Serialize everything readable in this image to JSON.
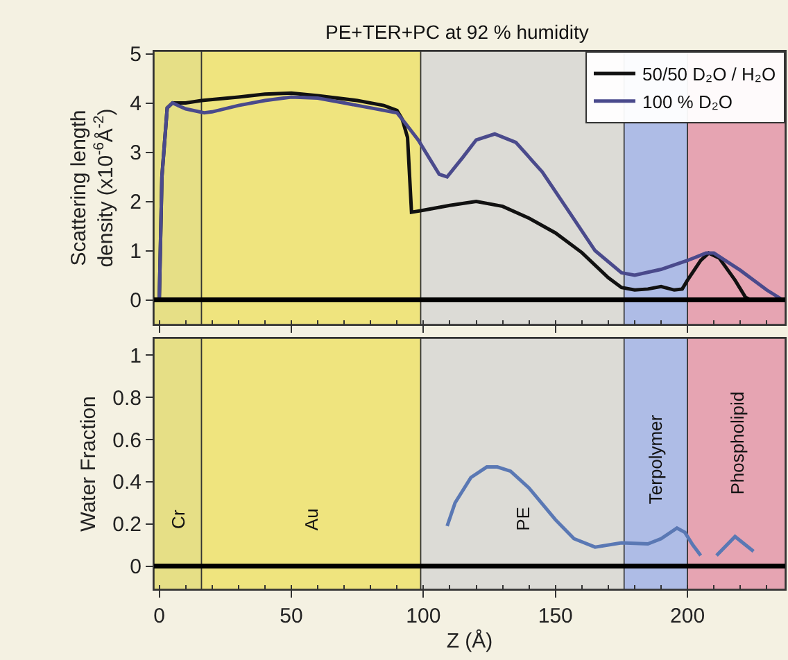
{
  "chart_data": [
    {
      "type": "line",
      "title": "PE+TER+PC at 92 % humidity",
      "ylabel": "Scattering length\ndensity (x10$^{-6}$Å$^{-2}$)",
      "xlim": [
        -2,
        237
      ],
      "xticks": [
        0,
        50,
        100,
        150,
        200
      ],
      "ylim": [
        -0.5,
        5.05
      ],
      "yticks": [
        0,
        1,
        2,
        3,
        4,
        5
      ],
      "tick_labels": "y",
      "grid": false,
      "legend": "top right",
      "marker": "none",
      "line_style": "solid",
      "series": [
        {
          "name": "50/50 D₂O / H₂O",
          "color": "#111111",
          "x": [
            0,
            1,
            3,
            5,
            10,
            16,
            30,
            40,
            50,
            60,
            75,
            85,
            90,
            92,
            94,
            95.5,
            100,
            110,
            120,
            130,
            140,
            150,
            160,
            170,
            175,
            180,
            185,
            190,
            195,
            198,
            200,
            205,
            208,
            212,
            218,
            222,
            224,
            236
          ],
          "values": [
            0,
            2.5,
            3.9,
            4.0,
            4.0,
            4.05,
            4.12,
            4.18,
            4.2,
            4.15,
            4.05,
            3.95,
            3.85,
            3.67,
            3.3,
            1.78,
            1.82,
            1.92,
            2.0,
            1.9,
            1.66,
            1.36,
            0.96,
            0.45,
            0.25,
            0.2,
            0.22,
            0.27,
            0.2,
            0.22,
            0.4,
            0.8,
            0.95,
            0.85,
            0.4,
            0.05,
            0,
            0
          ]
        },
        {
          "name": "100 % D₂O",
          "color": "#4a4a8c",
          "x": [
            0,
            1,
            3,
            5,
            10,
            17,
            20,
            30,
            40,
            50,
            60,
            70,
            80,
            90,
            93,
            98,
            102,
            106,
            109,
            115,
            120,
            127,
            135,
            145,
            155,
            165,
            175,
            180,
            190,
            200,
            207,
            210,
            220,
            230,
            236
          ],
          "values": [
            0,
            2.5,
            3.9,
            4.0,
            3.88,
            3.8,
            3.82,
            3.95,
            4.05,
            4.12,
            4.1,
            4.0,
            3.9,
            3.8,
            3.6,
            3.25,
            2.9,
            2.55,
            2.5,
            2.9,
            3.25,
            3.37,
            3.2,
            2.6,
            1.8,
            1.0,
            0.55,
            0.5,
            0.62,
            0.8,
            0.95,
            0.95,
            0.6,
            0.2,
            0
          ]
        }
      ],
      "ref_lines": [
        {
          "axis": "y",
          "value": 0,
          "color": "#000000"
        }
      ],
      "bands": [
        {
          "axis": "x",
          "from": -2,
          "to": 16,
          "color": "#e6df86"
        },
        {
          "axis": "x",
          "from": 16,
          "to": 99,
          "color": "#efe47e"
        },
        {
          "axis": "x",
          "from": 99,
          "to": 176,
          "color": "#dcdbd6"
        },
        {
          "axis": "x",
          "from": 176,
          "to": 200,
          "color": "#aebce6"
        },
        {
          "axis": "x",
          "from": 200,
          "to": 237,
          "color": "#e6a4b2"
        }
      ]
    },
    {
      "type": "line",
      "xlabel": "Z (Å)",
      "ylabel": "Water Fraction",
      "xlim": [
        -2,
        237
      ],
      "xticks": [
        0,
        50,
        100,
        150,
        200
      ],
      "ylim": [
        -0.11,
        1.08
      ],
      "yticks": [
        0,
        0.2,
        0.4,
        0.6,
        0.8,
        1
      ],
      "grid": false,
      "marker": "none",
      "line_style": "solid",
      "series": [
        {
          "color": "#5a78b4",
          "x": [
            109,
            112,
            118,
            124,
            128,
            133,
            140,
            150,
            157,
            165,
            175,
            185,
            190,
            196,
            199,
            202,
            205,
            208,
            211,
            218,
            225
          ],
          "values": [
            0.19,
            0.3,
            0.42,
            0.47,
            0.47,
            0.45,
            0.37,
            0.22,
            0.13,
            0.09,
            0.11,
            0.105,
            0.13,
            0.18,
            0.16,
            0.1,
            0.05,
            null,
            0.05,
            0.14,
            0.07
          ]
        }
      ],
      "ref_lines": [
        {
          "axis": "y",
          "value": 0,
          "color": "#000000"
        }
      ],
      "bands": [
        {
          "axis": "x",
          "from": -2,
          "to": 16,
          "label": "Cr",
          "color": "#e6df86"
        },
        {
          "axis": "x",
          "from": 16,
          "to": 99,
          "label": "Au",
          "color": "#efe47e"
        },
        {
          "axis": "x",
          "from": 99,
          "to": 176,
          "label": "PE",
          "color": "#dcdbd6"
        },
        {
          "axis": "x",
          "from": 176,
          "to": 200,
          "label": "Terpolymer",
          "color": "#aebce6"
        },
        {
          "axis": "x",
          "from": 200,
          "to": 237,
          "label": "Phospholipid",
          "color": "#e6a4b2"
        }
      ]
    }
  ]
}
